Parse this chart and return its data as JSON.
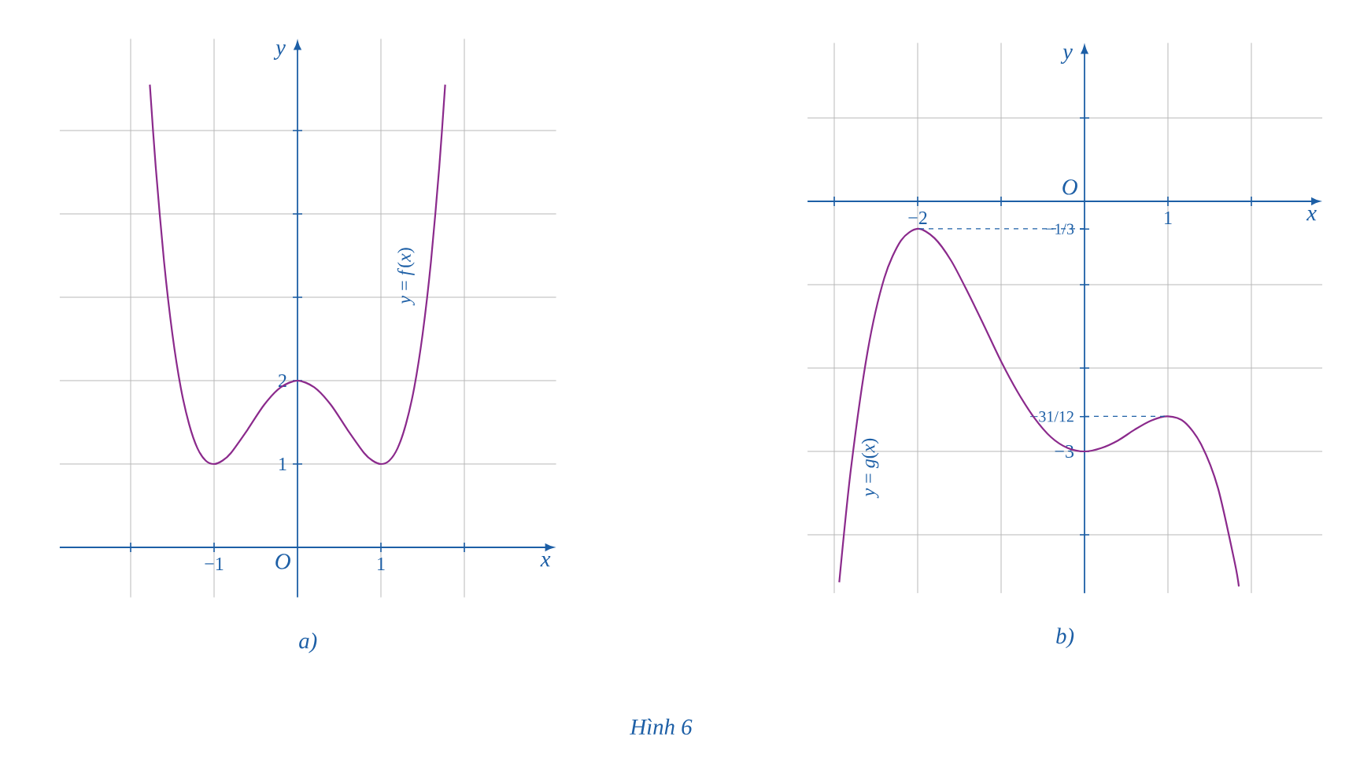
{
  "chart_data": [
    {
      "type": "line",
      "title": "a)",
      "xlabel": "x",
      "ylabel": "y",
      "x": [
        -1.77,
        -1.7,
        -1.6,
        -1.5,
        -1.4,
        -1.3,
        -1.2,
        -1.1,
        -1,
        -0.9,
        -0.8,
        -0.6,
        -0.4,
        -0.2,
        0,
        0.2,
        0.4,
        0.6,
        0.8,
        0.9,
        1,
        1.1,
        1.2,
        1.3,
        1.4,
        1.5,
        1.6,
        1.7,
        1.77
      ],
      "series": [
        {
          "name": "*y* = *f*(*x*)",
          "color": "#8b2a8c",
          "values": [
            5.55,
            4.57,
            3.43,
            2.56,
            1.92,
            1.48,
            1.19,
            1.04,
            1,
            1.04,
            1.13,
            1.41,
            1.71,
            1.92,
            2,
            1.92,
            1.71,
            1.41,
            1.13,
            1.04,
            1,
            1.04,
            1.19,
            1.48,
            1.92,
            2.56,
            3.43,
            4.57,
            5.55
          ]
        }
      ],
      "xlim": [
        -2.85,
        3.1
      ],
      "ylim": [
        -0.6,
        6.1
      ],
      "xticks": [
        {
          "value": -2,
          "label": null
        },
        {
          "value": -1,
          "label": "−1"
        },
        {
          "value": 1,
          "label": "1"
        },
        {
          "value": 2,
          "label": null
        }
      ],
      "yticks": [
        {
          "value": 1,
          "label": "1"
        },
        {
          "value": 2,
          "label": "2"
        },
        {
          "value": 3,
          "label": null
        },
        {
          "value": 4,
          "label": null
        },
        {
          "value": 5,
          "label": null
        }
      ],
      "grid": true,
      "annotations": [
        "O"
      ]
    },
    {
      "type": "line",
      "title": "b)",
      "xlabel": "x",
      "ylabel": "y",
      "x": [
        -2.94,
        -2.8,
        -2.6,
        -2.4,
        -2.2,
        -2,
        -1.8,
        -1.6,
        -1.4,
        -1.2,
        -1,
        -0.8,
        -0.6,
        -0.4,
        -0.2,
        0,
        0.2,
        0.4,
        0.6,
        0.8,
        1,
        1.2,
        1.4,
        1.6,
        1.8,
        1.85
      ],
      "series": [
        {
          "name": "*y* = *g*(*x*)",
          "color": "#8b2a8c",
          "values": [
            -4.57,
            -3.21,
            -1.8,
            -0.92,
            -0.47,
            -0.33,
            -0.44,
            -0.71,
            -1.09,
            -1.5,
            -1.92,
            -2.29,
            -2.6,
            -2.83,
            -2.96,
            -3,
            -2.96,
            -2.87,
            -2.74,
            -2.63,
            -2.58,
            -2.65,
            -2.92,
            -3.44,
            -4.33,
            -4.62
          ]
        }
      ],
      "xlim": [
        -3.32,
        2.85
      ],
      "ylim": [
        -4.7,
        1.9
      ],
      "xticks": [
        {
          "value": -3,
          "label": null
        },
        {
          "value": -2,
          "label": "−2"
        },
        {
          "value": -1,
          "label": null
        },
        {
          "value": 1,
          "label": "1"
        },
        {
          "value": 2,
          "label": null
        }
      ],
      "yticks": [
        {
          "value": 1,
          "label": null
        },
        {
          "value": -0.333,
          "label": "−1/3"
        },
        {
          "value": -1,
          "label": null
        },
        {
          "value": -2,
          "label": null
        },
        {
          "value": -2.583,
          "label": "−31/12"
        },
        {
          "value": -3,
          "label": "−3"
        },
        {
          "value": -4,
          "label": null
        }
      ],
      "grid": true,
      "ref_lines": [
        {
          "axis": "y",
          "value": -0.33,
          "line_style": "dashed"
        },
        {
          "axis": "y",
          "value": -2.58,
          "line_style": "dashed"
        }
      ],
      "annotations": [
        "O",
        "Hình 6"
      ]
    }
  ]
}
